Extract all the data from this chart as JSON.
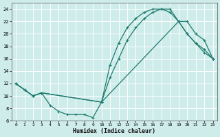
{
  "xlabel": "Humidex (Indice chaleur)",
  "xlim": [
    -0.5,
    23.5
  ],
  "ylim": [
    6,
    25
  ],
  "xticks": [
    0,
    1,
    2,
    3,
    4,
    5,
    6,
    7,
    8,
    9,
    10,
    11,
    12,
    13,
    14,
    15,
    16,
    17,
    18,
    19,
    20,
    21,
    22,
    23
  ],
  "yticks": [
    6,
    8,
    10,
    12,
    14,
    16,
    18,
    20,
    22,
    24
  ],
  "bg_color": "#ceecea",
  "grid_color": "#b0ddd9",
  "line_color": "#1e7a6e",
  "line1_x": [
    0,
    1,
    2,
    3,
    4,
    5,
    6,
    7,
    8,
    9,
    10,
    11,
    12,
    13,
    14,
    15,
    16,
    17,
    18,
    19,
    20,
    21,
    22,
    23
  ],
  "line1_y": [
    12,
    11,
    10,
    10.5,
    8.5,
    7.5,
    7,
    7,
    7,
    6.5,
    9,
    15,
    18.5,
    21,
    22.5,
    23.5,
    24,
    24,
    23.5,
    22,
    20,
    18.5,
    17.5,
    16
  ],
  "line2_x": [
    0,
    1,
    2,
    3,
    10,
    11,
    12,
    13,
    14,
    15,
    16,
    17,
    18,
    19,
    20,
    21,
    22,
    23
  ],
  "line2_y": [
    12,
    11,
    10,
    10.5,
    9,
    13,
    16,
    19,
    21,
    22.5,
    23.5,
    24,
    24,
    22,
    22,
    20,
    19,
    16
  ],
  "line3_x": [
    0,
    1,
    2,
    3,
    10,
    19,
    20,
    21,
    22,
    23
  ],
  "line3_y": [
    12,
    11,
    10,
    10.5,
    9,
    22,
    20,
    18.5,
    17,
    16
  ]
}
